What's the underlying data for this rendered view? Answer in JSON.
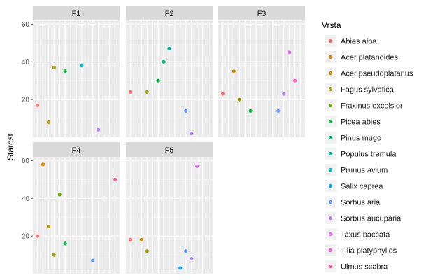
{
  "chart_data": {
    "type": "scatter",
    "ylabel": "Starost",
    "xlabel": "",
    "ylim": [
      0,
      62
    ],
    "yticks": [
      20,
      40,
      60
    ],
    "grid": true,
    "legend": {
      "title": "Vrsta",
      "placement": "right",
      "entries": [
        {
          "name": "Abies alba",
          "color": "#F8766D"
        },
        {
          "name": "Acer platanoides",
          "color": "#E58700"
        },
        {
          "name": "Acer pseudoplatanus",
          "color": "#C99800"
        },
        {
          "name": "Fagus sylvatica",
          "color": "#A3A500"
        },
        {
          "name": "Fraxinus excelsior",
          "color": "#6BB100"
        },
        {
          "name": "Picea abies",
          "color": "#00BA38"
        },
        {
          "name": "Pinus mugo",
          "color": "#00BF7D"
        },
        {
          "name": "Populus tremula",
          "color": "#00C0AF"
        },
        {
          "name": "Prunus avium",
          "color": "#00BCD8"
        },
        {
          "name": "Salix caprea",
          "color": "#00B0F6"
        },
        {
          "name": "Sorbus aria",
          "color": "#619CFF"
        },
        {
          "name": "Sorbus aucuparia",
          "color": "#B983FF"
        },
        {
          "name": "Taxus baccata",
          "color": "#E76BF3"
        },
        {
          "name": "Tilia platyphyllos",
          "color": "#FD61D1"
        },
        {
          "name": "Ulmus scabra",
          "color": "#FF67A4"
        }
      ]
    },
    "x_slots": 15,
    "facets": [
      {
        "label": "F1",
        "points": [
          {
            "x": 1,
            "y": 17,
            "color": "#F8766D"
          },
          {
            "x": 3,
            "y": 8,
            "color": "#C99800"
          },
          {
            "x": 4,
            "y": 37,
            "color": "#A3A500"
          },
          {
            "x": 6,
            "y": 35,
            "color": "#00BA38"
          },
          {
            "x": 9,
            "y": 38,
            "color": "#00BCD8"
          },
          {
            "x": 12,
            "y": 4,
            "color": "#B983FF"
          }
        ]
      },
      {
        "label": "F2",
        "points": [
          {
            "x": 1,
            "y": 24,
            "color": "#F8766D"
          },
          {
            "x": 4,
            "y": 24,
            "color": "#A3A500"
          },
          {
            "x": 6,
            "y": 30,
            "color": "#00BA38"
          },
          {
            "x": 7,
            "y": 40,
            "color": "#00BF7D"
          },
          {
            "x": 8,
            "y": 47,
            "color": "#00C0AF"
          },
          {
            "x": 11,
            "y": 14,
            "color": "#619CFF"
          },
          {
            "x": 12,
            "y": 2,
            "color": "#B983FF"
          }
        ]
      },
      {
        "label": "F3",
        "points": [
          {
            "x": 1,
            "y": 23,
            "color": "#F8766D"
          },
          {
            "x": 3,
            "y": 35,
            "color": "#C99800"
          },
          {
            "x": 4,
            "y": 20,
            "color": "#A3A500"
          },
          {
            "x": 6,
            "y": 14,
            "color": "#00BA38"
          },
          {
            "x": 11,
            "y": 14,
            "color": "#619CFF"
          },
          {
            "x": 12,
            "y": 23,
            "color": "#B983FF"
          },
          {
            "x": 13,
            "y": 45,
            "color": "#E76BF3"
          },
          {
            "x": 14,
            "y": 30,
            "color": "#FD61D1"
          }
        ]
      },
      {
        "label": "F4",
        "points": [
          {
            "x": 1,
            "y": 20,
            "color": "#F8766D"
          },
          {
            "x": 2,
            "y": 58,
            "color": "#E58700"
          },
          {
            "x": 3,
            "y": 25,
            "color": "#C99800"
          },
          {
            "x": 4,
            "y": 10,
            "color": "#A3A500"
          },
          {
            "x": 5,
            "y": 42,
            "color": "#6BB100"
          },
          {
            "x": 6,
            "y": 16,
            "color": "#00BA38"
          },
          {
            "x": 11,
            "y": 7,
            "color": "#619CFF"
          },
          {
            "x": 15,
            "y": 50,
            "color": "#FF67A4"
          }
        ]
      },
      {
        "label": "F5",
        "points": [
          {
            "x": 1,
            "y": 18,
            "color": "#F8766D"
          },
          {
            "x": 3,
            "y": 18,
            "color": "#C99800"
          },
          {
            "x": 4,
            "y": 12,
            "color": "#A3A500"
          },
          {
            "x": 10,
            "y": 3,
            "color": "#00B0F6"
          },
          {
            "x": 11,
            "y": 12,
            "color": "#619CFF"
          },
          {
            "x": 12,
            "y": 8,
            "color": "#B983FF"
          },
          {
            "x": 13,
            "y": 57,
            "color": "#E76BF3"
          }
        ]
      }
    ]
  }
}
